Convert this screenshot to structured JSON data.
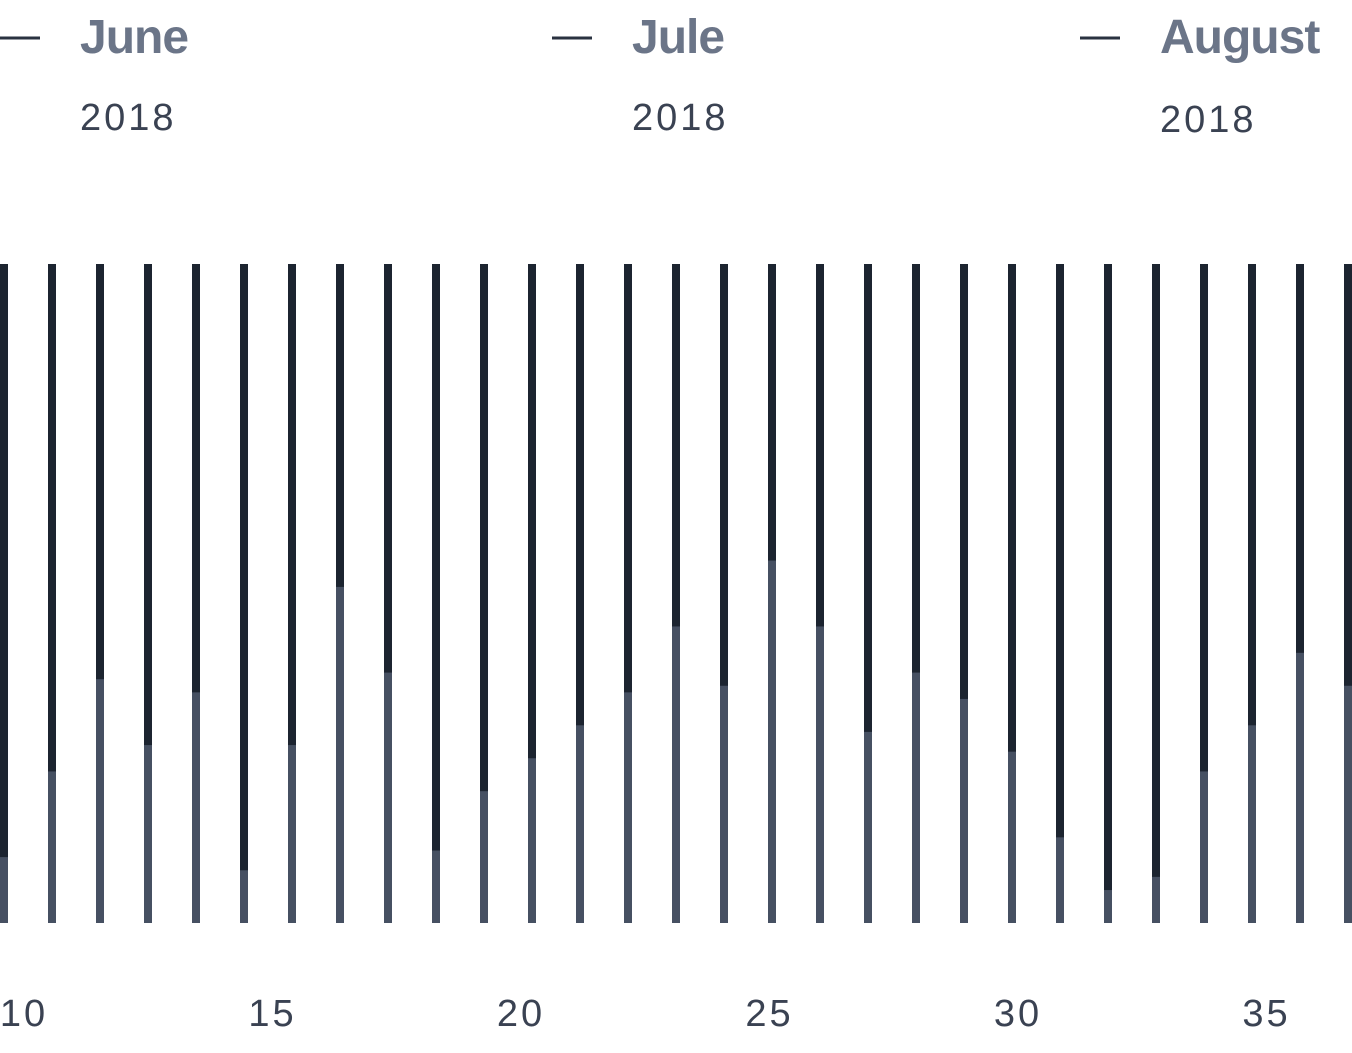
{
  "chart_data": {
    "type": "bar",
    "months": [
      {
        "name": "June",
        "year": "2018"
      },
      {
        "name": "Jule",
        "year": "2018"
      },
      {
        "name": "August",
        "year": "2018"
      }
    ],
    "categories": [
      "10",
      null,
      null,
      null,
      null,
      "15",
      null,
      null,
      null,
      null,
      "20",
      null,
      null,
      null,
      null,
      "25",
      null,
      null,
      null,
      null,
      "30",
      null,
      null,
      null,
      null,
      "35",
      null,
      null,
      null
    ],
    "values": [
      10,
      23,
      37,
      27,
      35,
      8,
      27,
      51,
      38,
      11,
      20,
      25,
      30,
      35,
      45,
      36,
      55,
      45,
      29,
      38,
      34,
      26,
      13,
      5,
      7,
      23,
      30,
      41,
      36
    ],
    "ylim": [
      0,
      100
    ],
    "color": "#465062",
    "track_color": "#1c2430"
  }
}
